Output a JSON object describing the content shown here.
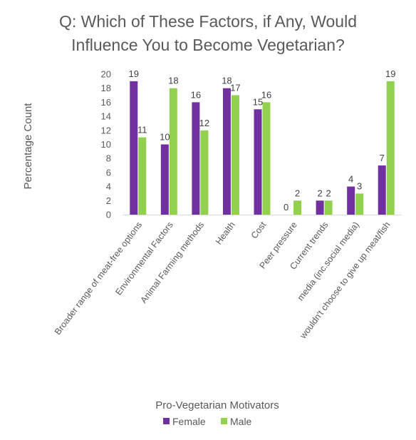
{
  "chart_data": {
    "type": "bar",
    "title_lines": [
      "Q: Which of These Factors, if Any, Would",
      "Influence You to Become Vegetarian?"
    ],
    "xlabel": "Pro-Vegetarian Motivators",
    "ylabel": "Percentage Count",
    "ylim": [
      0,
      20
    ],
    "yticks": [
      "0",
      "2",
      "4",
      "6",
      "8",
      "10",
      "12",
      "14",
      "16",
      "18",
      "20"
    ],
    "categories": [
      "Broader range of meat-free options",
      "Environmental Factors",
      "Animal Farming methods",
      "Health",
      "Cost",
      "Peer pressure",
      "Current trends",
      "media (inc.social media)",
      "wouldn't choose to give up meat/fish"
    ],
    "series": [
      {
        "name": "Female",
        "color": "#7030a0",
        "values": [
          19,
          10,
          16,
          18,
          15,
          0,
          2,
          4,
          7
        ]
      },
      {
        "name": "Male",
        "color": "#92d050",
        "values": [
          11,
          18,
          12,
          17,
          16,
          2,
          2,
          3,
          19
        ]
      }
    ],
    "data_labels": true,
    "grid": false,
    "legend_position": "bottom"
  }
}
